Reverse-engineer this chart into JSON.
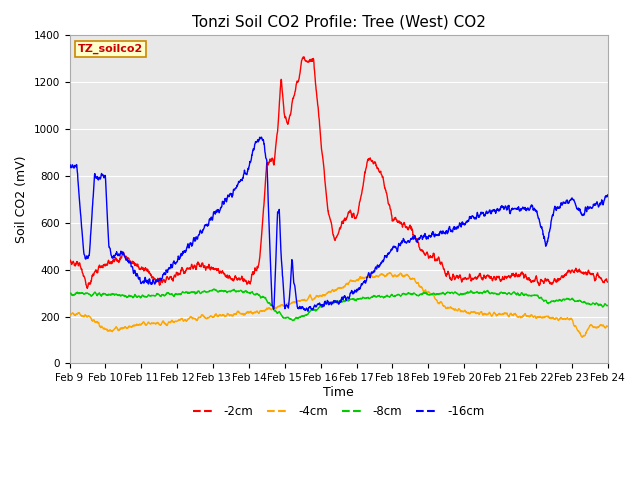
{
  "title": "Tonzi Soil CO2 Profile: Tree (West) CO2",
  "ylabel": "Soil CO2 (mV)",
  "xlabel": "Time",
  "legend_label": "TZ_soilco2",
  "series_labels": [
    "-2cm",
    "-4cm",
    "-8cm",
    "-16cm"
  ],
  "series_colors": [
    "#ff0000",
    "#ffa500",
    "#00cc00",
    "#0000ff"
  ],
  "xtick_labels": [
    "Feb 9",
    "Feb 10",
    "Feb 11",
    "Feb 12",
    "Feb 13",
    "Feb 14",
    "Feb 15",
    "Feb 16",
    "Feb 17",
    "Feb 18",
    "Feb 19",
    "Feb 20",
    "Feb 21",
    "Feb 22",
    "Feb 23",
    "Feb 24"
  ],
  "ylim": [
    0,
    1400
  ],
  "xlim": [
    0,
    15
  ],
  "background_color": "#ffffff",
  "plot_bg_color": "#e8e8e8",
  "title_fontsize": 11,
  "axis_label_fontsize": 9,
  "tick_fontsize": 7.5
}
